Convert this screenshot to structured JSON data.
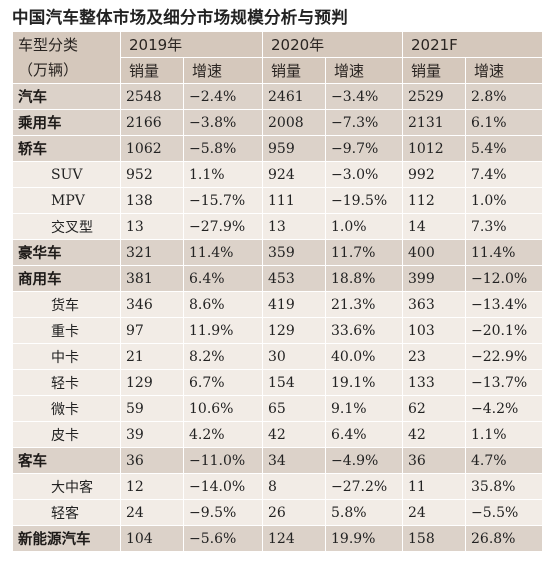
{
  "title": "中国汽车整体市场及细分市场规模分析与预判",
  "header": {
    "type_label": "车型分类",
    "unit_label": "（万辆）",
    "years": [
      "2019年",
      "2020年",
      "2021F"
    ],
    "sales_label": "销量",
    "growth_label": "增速"
  },
  "rows": [
    {
      "name": "汽车",
      "group": true,
      "cells": [
        "2548",
        "−2.4%",
        "2461",
        "−3.4%",
        "2529",
        "2.8%"
      ]
    },
    {
      "name": "乘用车",
      "group": true,
      "cells": [
        "2166",
        "−3.8%",
        "2008",
        "−7.3%",
        "2131",
        "6.1%"
      ]
    },
    {
      "name": "轿车",
      "group": true,
      "cells": [
        "1062",
        "−5.8%",
        "959",
        "−9.7%",
        "1012",
        "5.4%"
      ]
    },
    {
      "name": "SUV",
      "group": false,
      "cells": [
        "952",
        "1.1%",
        "924",
        "−3.0%",
        "992",
        "7.4%"
      ]
    },
    {
      "name": "MPV",
      "group": false,
      "cells": [
        "138",
        "−15.7%",
        "111",
        "−19.5%",
        "112",
        "1.0%"
      ]
    },
    {
      "name": "交叉型",
      "group": false,
      "cells": [
        "13",
        "−27.9%",
        "13",
        "1.0%",
        "14",
        "7.3%"
      ]
    },
    {
      "name": "豪华车",
      "group": true,
      "cells": [
        "321",
        "11.4%",
        "359",
        "11.7%",
        "400",
        "11.4%"
      ]
    },
    {
      "name": "商用车",
      "group": true,
      "cells": [
        "381",
        "6.4%",
        "453",
        "18.8%",
        "399",
        "−12.0%"
      ]
    },
    {
      "name": "货车",
      "group": false,
      "cells": [
        "346",
        "8.6%",
        "419",
        "21.3%",
        "363",
        "−13.4%"
      ]
    },
    {
      "name": "重卡",
      "group": false,
      "cells": [
        "97",
        "11.9%",
        "129",
        "33.6%",
        "103",
        "−20.1%"
      ]
    },
    {
      "name": "中卡",
      "group": false,
      "cells": [
        "21",
        "8.2%",
        "30",
        "40.0%",
        "23",
        "−22.9%"
      ]
    },
    {
      "name": "轻卡",
      "group": false,
      "cells": [
        "129",
        "6.7%",
        "154",
        "19.1%",
        "133",
        "−13.7%"
      ]
    },
    {
      "name": "微卡",
      "group": false,
      "cells": [
        "59",
        "10.6%",
        "65",
        "9.1%",
        "62",
        "−4.2%"
      ]
    },
    {
      "name": "皮卡",
      "group": false,
      "cells": [
        "39",
        "4.2%",
        "42",
        "6.4%",
        "42",
        "1.1%"
      ]
    },
    {
      "name": "客车",
      "group": true,
      "cells": [
        "36",
        "−11.0%",
        "34",
        "−4.9%",
        "36",
        "4.7%"
      ]
    },
    {
      "name": "大中客",
      "group": false,
      "cells": [
        "12",
        "−14.0%",
        "8",
        "−27.2%",
        "11",
        "35.8%"
      ]
    },
    {
      "name": "轻客",
      "group": false,
      "cells": [
        "24",
        "−9.5%",
        "26",
        "5.8%",
        "24",
        "−5.5%"
      ]
    },
    {
      "name": "新能源汽车",
      "group": true,
      "cells": [
        "104",
        "−5.6%",
        "124",
        "19.9%",
        "158",
        "26.8%"
      ]
    }
  ],
  "colors": {
    "header_bg": "#d5c8bc",
    "group_row_bg": "#dcd2c9",
    "sub_row_bg": "#f2ece6",
    "cell_border": "#ffffff"
  }
}
